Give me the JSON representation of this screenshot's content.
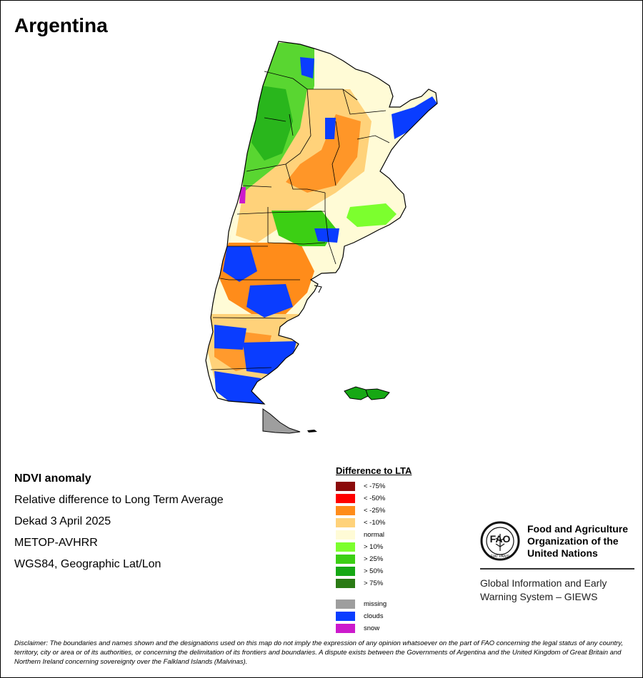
{
  "title": "Argentina",
  "info": {
    "product": "NDVI anomaly",
    "description": "Relative difference to Long Term Average",
    "period": "Dekad 3 April 2025",
    "sensor": "METOP-AVHRR",
    "projection": "WGS84, Geographic Lat/Lon"
  },
  "legend": {
    "title": "Difference to LTA",
    "items": [
      {
        "label": "< -75%",
        "color": "#8b0a0a"
      },
      {
        "label": "< -50%",
        "color": "#ff0000"
      },
      {
        "label": "< -25%",
        "color": "#ff8c1a"
      },
      {
        "label": "< -10%",
        "color": "#ffd27a"
      },
      {
        "label": "normal",
        "color": "#fffbd6"
      },
      {
        "label": "> 10%",
        "color": "#7cff2e"
      },
      {
        "label": "> 25%",
        "color": "#3ccf14"
      },
      {
        "label": "> 50%",
        "color": "#16a814"
      },
      {
        "label": "> 75%",
        "color": "#2a7a14"
      }
    ],
    "extra": [
      {
        "label": "missing",
        "color": "#9e9e9e"
      },
      {
        "label": "clouds",
        "color": "#0a3dff"
      },
      {
        "label": "snow",
        "color": "#cc1acc"
      }
    ]
  },
  "fao": {
    "name_line1": "Food and Agriculture",
    "name_line2": "Organization of the",
    "name_line3": "United Nations",
    "emblem_letters": "FAO",
    "emblem_motto": "FIAT PANIS",
    "giews_line1": "Global Information and Early",
    "giews_line2": "Warning System – GIEWS"
  },
  "disclaimer": "Disclaimer: The boundaries and names shown and the designations used on this map do not imply the expression of any opinion whatsoever on the part of FAO concerning the legal status of any country, territory, city or area or of its authorities, or concerning the delimitation of its frontiers and boundaries. A dispute exists between the Governments of Argentina and the United Kingdom of Great Britain and Northern Ireland concerning sovereignty over the Falkland Islands (Malvinas).",
  "map": {
    "colors": {
      "normal": "#fffbd6",
      "minus10": "#ffd27a",
      "minus25": "#ff8c1a",
      "plus10": "#7cff2e",
      "plus25": "#3ccf14",
      "plus50": "#16a814",
      "clouds": "#0a3dff",
      "missing": "#9e9e9e",
      "snow": "#cc1acc",
      "border": "#000000"
    }
  }
}
